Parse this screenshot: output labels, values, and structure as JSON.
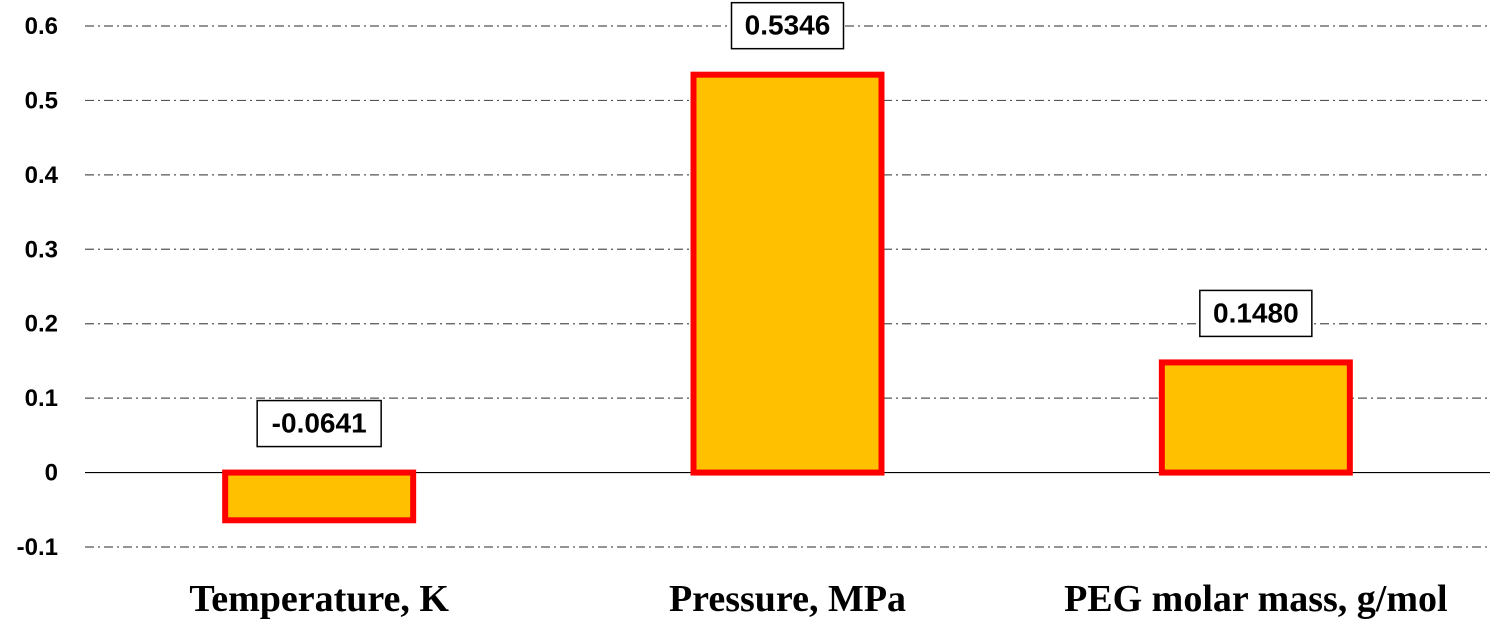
{
  "chart_data": {
    "type": "bar",
    "categories": [
      "Temperature, K",
      "Pressure, MPa",
      "PEG molar mass, g/mol"
    ],
    "values": [
      -0.0641,
      0.5346,
      0.148
    ],
    "data_labels": [
      "-0.0641",
      "0.5346",
      "0.1480"
    ],
    "title": "",
    "xlabel": "",
    "ylabel": "",
    "ylim": [
      -0.1,
      0.6
    ],
    "yticks": [
      -0.1,
      0,
      0.1,
      0.2,
      0.3,
      0.4,
      0.5,
      0.6
    ],
    "ytick_labels": [
      "-0.1",
      "0",
      "0.1",
      "0.2",
      "0.3",
      "0.4",
      "0.5",
      "0.6"
    ],
    "grid": true,
    "legend": "none",
    "colors": {
      "bar_fill": "#FFC000",
      "bar_border": "#FF0000"
    }
  }
}
